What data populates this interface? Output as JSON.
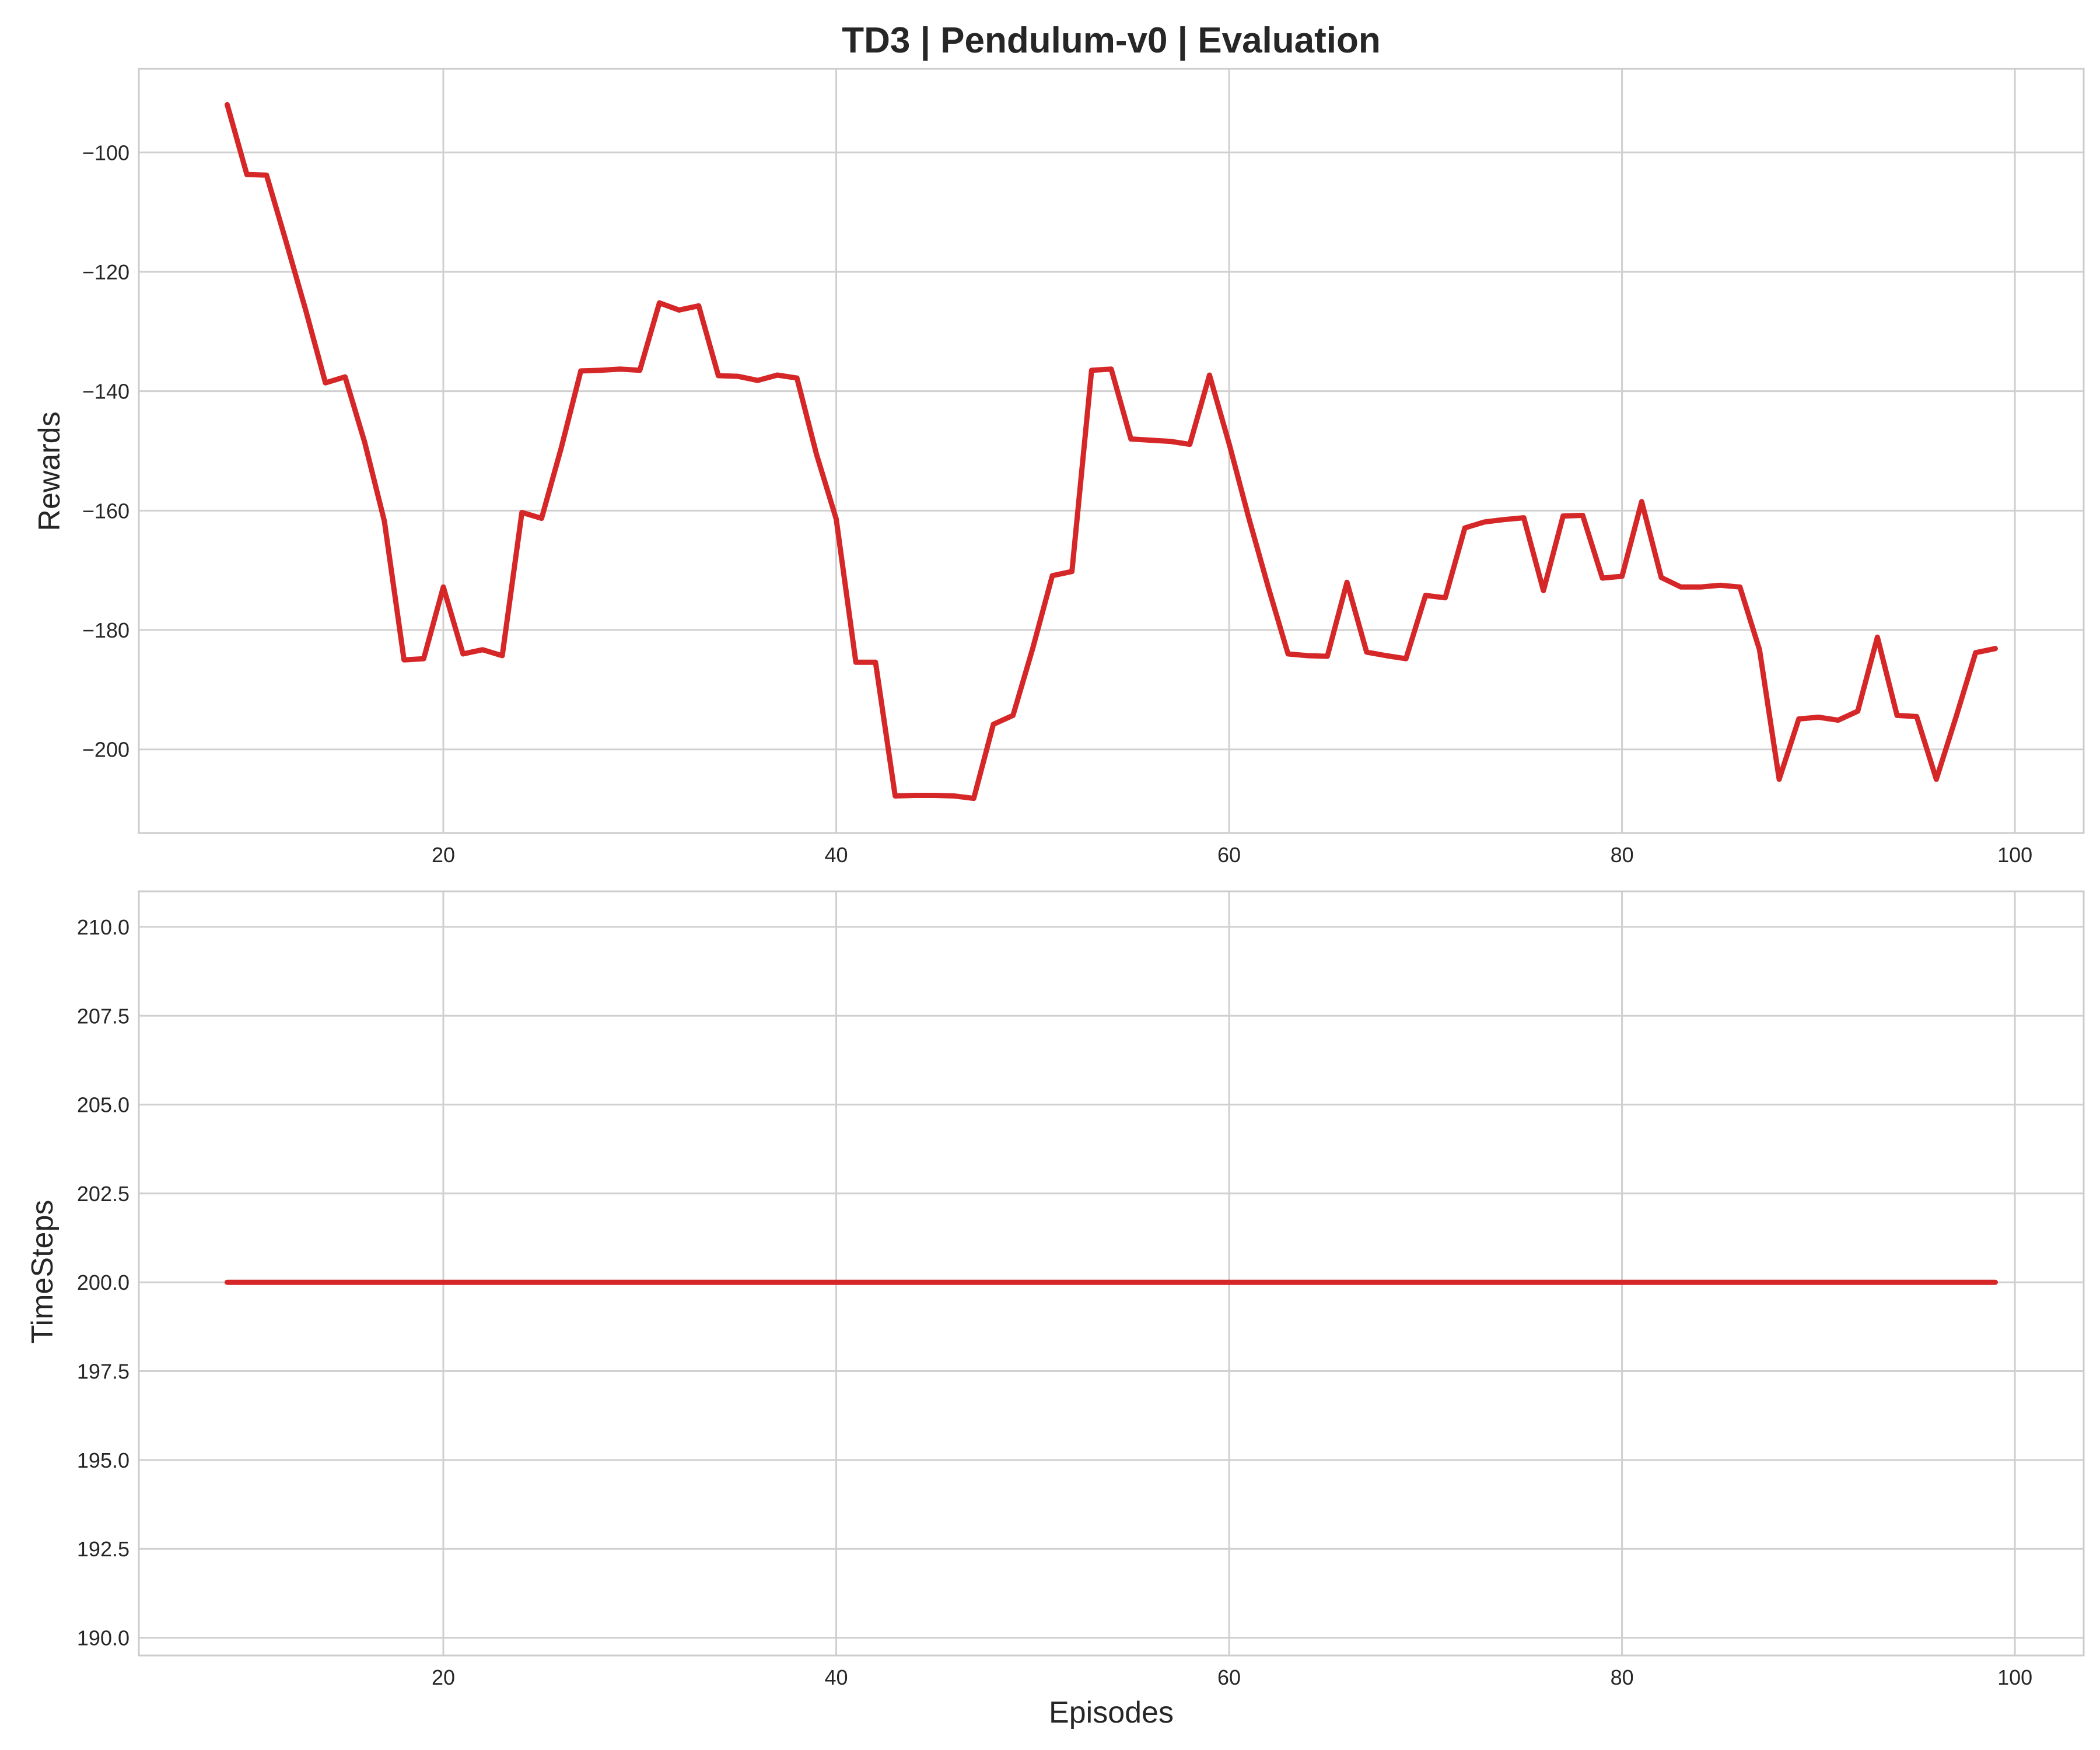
{
  "figure": {
    "title": "TD3 | Pendulum-v0 | Evaluation",
    "xlabel": "Episodes",
    "line_color": "#d62728"
  },
  "chart_data": [
    {
      "type": "line",
      "title": "TD3 | Pendulum-v0 | Evaluation",
      "xlabel": "",
      "ylabel": "Rewards",
      "grid": true,
      "xlim": [
        4.5,
        103.5
      ],
      "ylim": [
        -214,
        -86
      ],
      "xticks": [
        20,
        40,
        60,
        80,
        100
      ],
      "yticks": [
        -100,
        -120,
        -140,
        -160,
        -180,
        -200
      ],
      "ytick_labels": [
        "−100",
        "−120",
        "−140",
        "−160",
        "−180",
        "−200"
      ],
      "x": [
        9,
        10,
        11,
        12,
        13,
        14,
        15,
        16,
        17,
        18,
        19,
        20,
        21,
        22,
        23,
        24,
        25,
        26,
        27,
        28,
        29,
        30,
        31,
        32,
        33,
        34,
        35,
        36,
        37,
        38,
        39,
        40,
        41,
        42,
        43,
        44,
        45,
        46,
        47,
        48,
        49,
        50,
        51,
        52,
        53,
        54,
        55,
        56,
        57,
        58,
        59,
        60,
        61,
        62,
        63,
        64,
        65,
        66,
        67,
        68,
        69,
        70,
        71,
        72,
        73,
        74,
        75,
        76,
        77,
        78,
        79,
        80,
        81,
        82,
        83,
        84,
        85,
        86,
        87,
        88,
        89,
        90,
        91,
        92,
        93,
        94,
        95,
        96,
        97,
        98,
        99
      ],
      "series": [
        {
          "values": [
            -92,
            -103.7,
            -103.8,
            -115,
            -126.5,
            -138.6,
            -137.6,
            -148.6,
            -161.8,
            -185,
            -184.8,
            -172.8,
            -184,
            -183.3,
            -184.3,
            -160.3,
            -161.3,
            -149.5,
            -136.6,
            -136.5,
            -136.3,
            -136.5,
            -125.2,
            -126.4,
            -125.7,
            -137.4,
            -137.5,
            -138.2,
            -137.3,
            -137.8,
            -150.6,
            -161.4,
            -185.4,
            -185.4,
            -207.8,
            -207.7,
            -207.7,
            -207.8,
            -208.2,
            -195.8,
            -194.3,
            -183.1,
            -170.9,
            -170.2,
            -136.5,
            -136.3,
            -148,
            -148.2,
            -148.4,
            -148.9,
            -137.3,
            -148.8,
            -161.2,
            -172.9,
            -184,
            -184.3,
            -184.4,
            -172,
            -183.7,
            -184.3,
            -184.8,
            -174.2,
            -174.6,
            -162.9,
            -161.9,
            -161.5,
            -161.2,
            -173.4,
            -160.9,
            -160.8,
            -171.3,
            -171,
            -158.5,
            -171.2,
            -172.8,
            -172.8,
            -172.5,
            -172.8,
            -183.3,
            -205,
            -194.9,
            -194.6,
            -195.1,
            -193.6,
            -181.2,
            -194.3,
            -194.5,
            -205,
            -194.6,
            -183.8,
            -183.1
          ]
        }
      ]
    },
    {
      "type": "line",
      "xlabel": "Episodes",
      "ylabel": "TimeSteps",
      "grid": true,
      "xlim": [
        4.5,
        103.5
      ],
      "ylim": [
        189.5,
        211
      ],
      "xticks": [
        20,
        40,
        60,
        80,
        100
      ],
      "yticks": [
        190,
        192.5,
        195,
        197.5,
        200,
        202.5,
        205,
        207.5,
        210
      ],
      "ytick_labels": [
        "190.0",
        "192.5",
        "195.0",
        "197.5",
        "200.0",
        "202.5",
        "205.0",
        "207.5",
        "210.0"
      ],
      "x": [
        9,
        99
      ],
      "series": [
        {
          "values": [
            200,
            200
          ]
        }
      ]
    }
  ]
}
